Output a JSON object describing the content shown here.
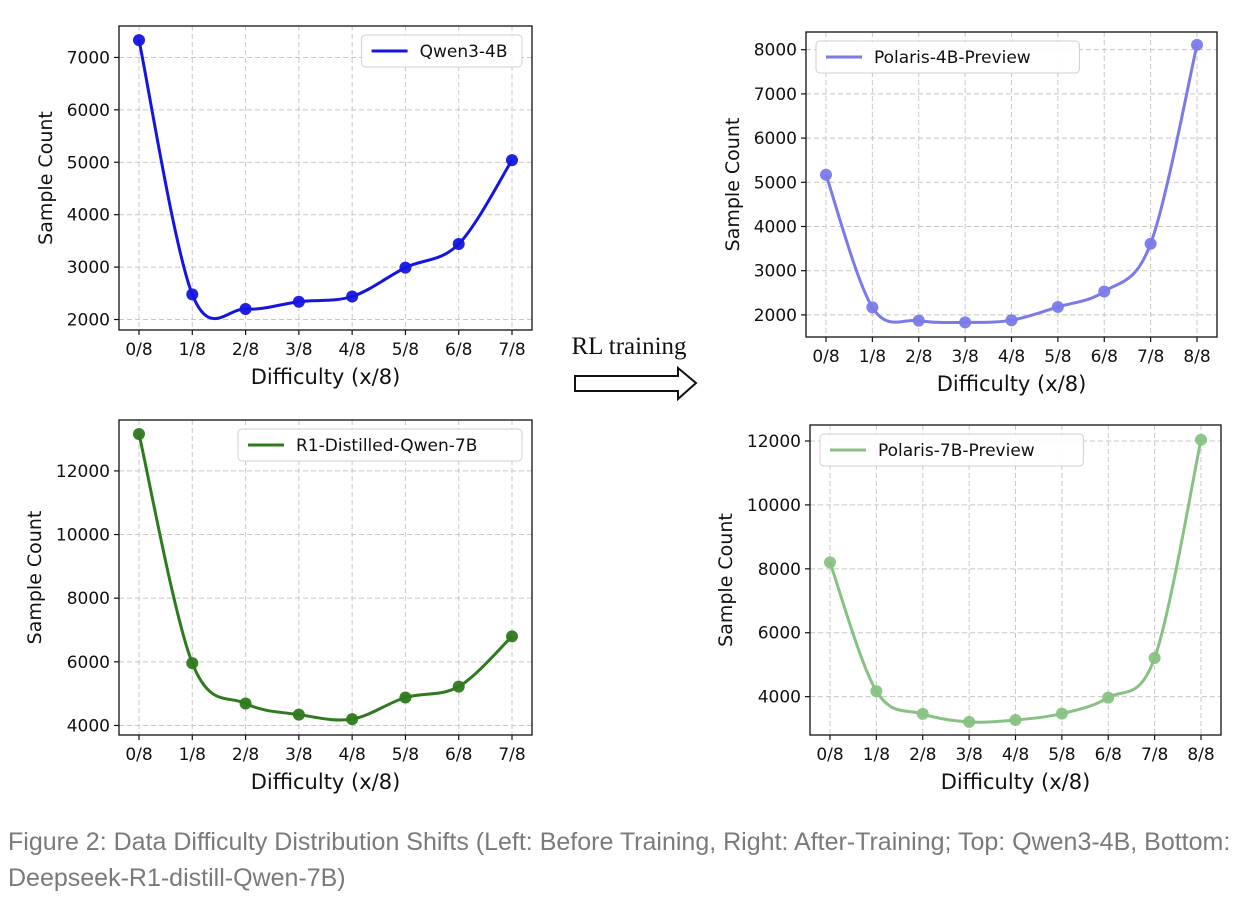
{
  "chart_data": [
    {
      "type": "line",
      "panel": "top-left",
      "categories": [
        "0/8",
        "1/8",
        "2/8",
        "3/8",
        "4/8",
        "5/8",
        "6/8",
        "7/8"
      ],
      "series": [
        {
          "name": "Qwen3-4B",
          "values": [
            7330,
            2480,
            2200,
            2340,
            2440,
            2990,
            3440,
            5040
          ],
          "color": "#1515e0"
        }
      ],
      "xlabel": "Difficulty (x/8)",
      "ylabel": "Sample Count",
      "ylim": [
        1800,
        7600
      ],
      "yticks": [
        2000,
        3000,
        4000,
        5000,
        6000,
        7000
      ],
      "grid": true,
      "legend": "top-right"
    },
    {
      "type": "line",
      "panel": "top-right",
      "categories": [
        "0/8",
        "1/8",
        "2/8",
        "3/8",
        "4/8",
        "5/8",
        "6/8",
        "7/8",
        "8/8"
      ],
      "series": [
        {
          "name": "Polaris-4B-Preview",
          "values": [
            5170,
            2170,
            1870,
            1830,
            1880,
            2180,
            2530,
            3610,
            8110
          ],
          "color": "#7a7aea"
        }
      ],
      "xlabel": "Difficulty (x/8)",
      "ylabel": "Sample Count",
      "ylim": [
        1500,
        8400
      ],
      "yticks": [
        2000,
        3000,
        4000,
        5000,
        6000,
        7000,
        8000
      ],
      "grid": true,
      "legend": "top-left"
    },
    {
      "type": "line",
      "panel": "bottom-left",
      "categories": [
        "0/8",
        "1/8",
        "2/8",
        "3/8",
        "4/8",
        "5/8",
        "6/8",
        "7/8"
      ],
      "series": [
        {
          "name": "R1-Distilled-Qwen-7B",
          "values": [
            13160,
            5960,
            4690,
            4340,
            4200,
            4880,
            5220,
            6800
          ],
          "color": "#2e7a1e"
        }
      ],
      "xlabel": "Difficulty (x/8)",
      "ylabel": "Sample Count",
      "ylim": [
        3700,
        13600
      ],
      "yticks": [
        4000,
        6000,
        8000,
        10000,
        12000
      ],
      "grid": true,
      "legend": "top-right"
    },
    {
      "type": "line",
      "panel": "bottom-right",
      "categories": [
        "0/8",
        "1/8",
        "2/8",
        "3/8",
        "4/8",
        "5/8",
        "6/8",
        "7/8",
        "8/8"
      ],
      "series": [
        {
          "name": "Polaris-7B-Preview",
          "values": [
            8200,
            4170,
            3460,
            3210,
            3270,
            3470,
            3970,
            5210,
            12040
          ],
          "color": "#88c282"
        }
      ],
      "xlabel": "Difficulty (x/8)",
      "ylabel": "Sample Count",
      "ylim": [
        2800,
        12500
      ],
      "yticks": [
        4000,
        6000,
        8000,
        10000,
        12000
      ],
      "grid": true,
      "legend": "top-left"
    }
  ],
  "arrow_label": "RL training",
  "caption": "Figure 2: Data Difficulty Distribution Shifts (Left: Before Training, Right: After-Training; Top: Qwen3-4B, Bottom: Deepseek-R1-distill-Qwen-7B)"
}
